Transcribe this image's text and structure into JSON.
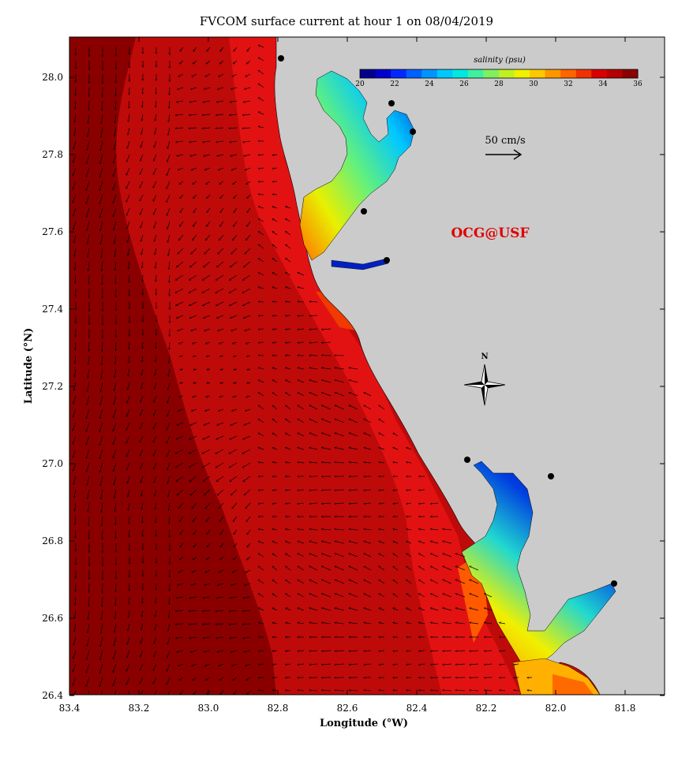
{
  "title": "FVCOM surface current at hour 1 on 08/04/2019",
  "xaxis": {
    "label": "Longitude (°W)",
    "ticks": [
      "83.4",
      "83.2",
      "83.0",
      "82.8",
      "82.6",
      "82.4",
      "82.2",
      "82.0",
      "81.8"
    ]
  },
  "yaxis": {
    "label": "Latitude (°N)",
    "ticks": [
      "28.0",
      "27.8",
      "27.6",
      "27.4",
      "27.2",
      "27.0",
      "26.8",
      "26.6",
      "26.4"
    ]
  },
  "colorbar": {
    "label": "salinity (psu)",
    "ticks": [
      "20",
      "22",
      "24",
      "26",
      "28",
      "30",
      "32",
      "34",
      "36"
    ],
    "colors": [
      "#00008b",
      "#0000cd",
      "#0028ff",
      "#0060ff",
      "#0094ff",
      "#00c8ff",
      "#00e8e0",
      "#40f0a0",
      "#80f060",
      "#c0f020",
      "#f0f000",
      "#ffc800",
      "#ff9600",
      "#ff6400",
      "#f03200",
      "#d80000",
      "#b40000",
      "#8b0000"
    ]
  },
  "scale_arrow": {
    "label": "50 cm/s"
  },
  "credit": "OCG@USF",
  "compass": {
    "label": "N"
  },
  "colors": {
    "land": "#cbcbcb",
    "deep_water": "#8a0000",
    "shelf_water": "#bf0a0a",
    "near_shore": "#e01010",
    "credit": "#e00000"
  }
}
